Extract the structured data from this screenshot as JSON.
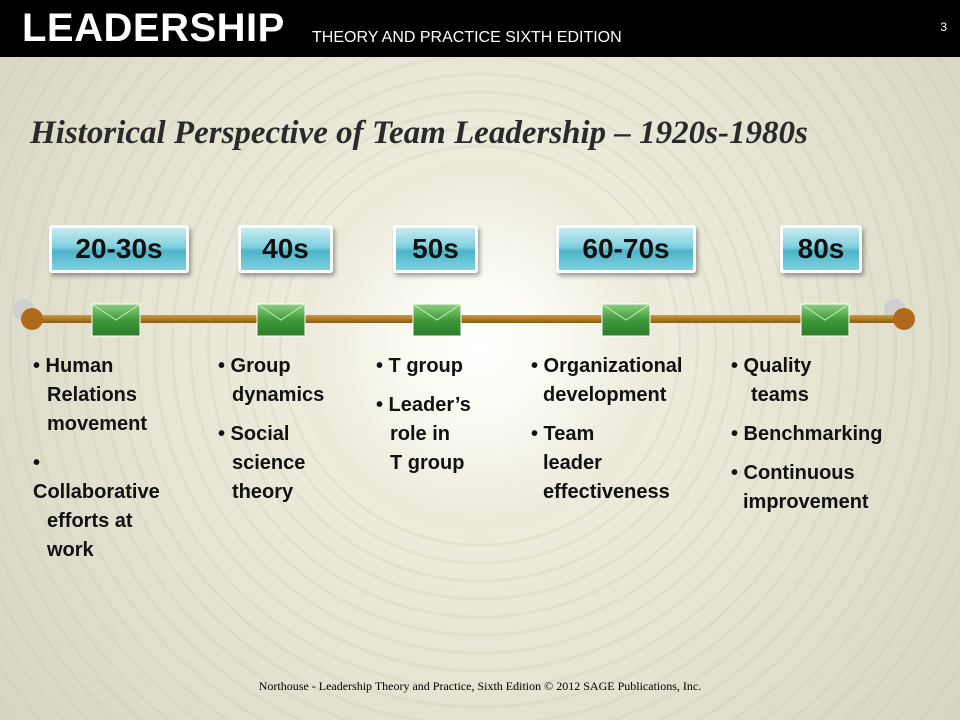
{
  "header": {
    "brand": "LEADERSHIP",
    "subtitle": "THEORY AND PRACTICE SIXTH EDITION",
    "page_number": "3"
  },
  "title": "Historical Perspective of Team Leadership – 1920s-1980s",
  "eras": [
    {
      "label": "20-30s",
      "items": [
        [
          "• Human",
          "Relations",
          "movement"
        ],
        [
          "•",
          "Collaborative",
          "efforts at",
          "work"
        ]
      ]
    },
    {
      "label": "40s",
      "items": [
        [
          "• Group",
          "dynamics"
        ],
        [
          "• Social",
          "science",
          "theory"
        ]
      ]
    },
    {
      "label": "50s",
      "items": [
        [
          "• T group"
        ],
        [
          "• Leader’s",
          "role in",
          "T group"
        ]
      ]
    },
    {
      "label": "60-70s",
      "items": [
        [
          "• Organizational",
          "development"
        ],
        [
          "• Team",
          "leader",
          "effectiveness"
        ]
      ]
    },
    {
      "label": "80s",
      "items": [
        [
          "• Quality",
          "teams"
        ],
        [
          "• Benchmarking"
        ],
        [
          "• Continuous",
          "improvement"
        ]
      ]
    }
  ],
  "colors": {
    "header_bg": "#000000",
    "era_box": "#6cc8da",
    "timeline_line": "#b07a1c",
    "marker": "#3f9a3a"
  },
  "footer": "Northouse - Leadership Theory and Practice, Sixth Edition © 2012 SAGE Publications, Inc."
}
